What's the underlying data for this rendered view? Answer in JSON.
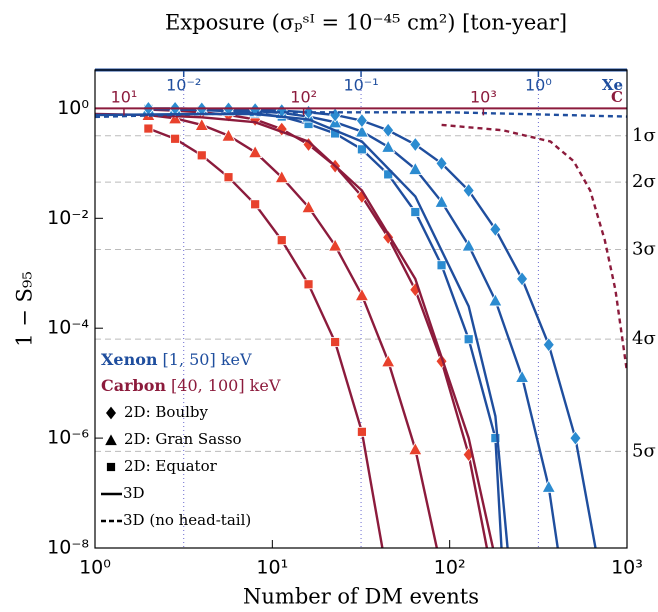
{
  "chart_data": {
    "type": "line",
    "title": "Exposure (σₚˢᴵ = 10⁻⁴⁵ cm²) [ton-year]",
    "x_label": "Number of DM events",
    "y_label": "1 − S₉₅",
    "log_x": true,
    "log_y": true,
    "xlim": [
      1,
      1000
    ],
    "xticks": [
      {
        "value": 1,
        "label": "10⁰"
      },
      {
        "value": 10,
        "label": "10¹"
      },
      {
        "value": 100,
        "label": "10²"
      },
      {
        "value": 1000,
        "label": "10³"
      }
    ],
    "ylim": [
      1e-08,
      5
    ],
    "yticks": [
      {
        "value": 1,
        "label": "10⁰"
      },
      {
        "value": 0.01,
        "label": "10⁻²"
      },
      {
        "value": 0.0001,
        "label": "10⁻⁴"
      },
      {
        "value": 1e-06,
        "label": "10⁻⁶"
      },
      {
        "value": 1e-08,
        "label": "10⁻⁸"
      }
    ],
    "y2lim": [
      1e-08,
      5
    ],
    "y2ticks": [
      {
        "value": 0.3173,
        "label": "1σ"
      },
      {
        "value": 0.0455,
        "label": "2σ"
      },
      {
        "value": 0.0027,
        "label": "3σ"
      },
      {
        "value": 6.33e-05,
        "label": "4σ"
      },
      {
        "value": 5.73e-07,
        "label": "5σ"
      }
    ],
    "y2_grid": true,
    "top_axes": [
      {
        "name": "Xe",
        "color": "#1f4e9e",
        "lim": [
          0.00316,
          3.16
        ],
        "ticks": [
          {
            "value": 0.01,
            "label": "10⁻²"
          },
          {
            "value": 0.1,
            "label": "10⁻¹"
          },
          {
            "value": 1,
            "label": "10⁰"
          }
        ],
        "grid": true
      },
      {
        "name": "C",
        "color": "#8c1b3c",
        "lim": [
          6.9,
          6300
        ],
        "ticks": [
          {
            "value": 10,
            "label": "10¹"
          },
          {
            "value": 100,
            "label": "10²"
          },
          {
            "value": 1000,
            "label": "10³"
          }
        ],
        "grid": false
      }
    ],
    "legend": {
      "targets": [
        {
          "name": "Xenon",
          "range": "[1, 50] keV",
          "color": "#1f4e9e"
        },
        {
          "name": "Carbon",
          "range": "[40, 100] keV",
          "color": "#8c1b3c"
        }
      ],
      "entries": [
        {
          "label": "2D: Boulby",
          "marker": "diamond"
        },
        {
          "label": "2D: Gran Sasso",
          "marker": "triangle"
        },
        {
          "label": "2D: Equator",
          "marker": "square"
        },
        {
          "label": "3D",
          "dash": false
        },
        {
          "label": "3D (no head-tail)",
          "dash": true
        }
      ]
    },
    "series": [
      {
        "color": "#8c1b3c",
        "marker": "square",
        "marker_color": "#e8412c",
        "dash": false,
        "x": [
          2,
          2.83,
          4,
          5.66,
          8,
          11.3,
          16,
          22.6,
          32,
          45
        ],
        "values": [
          0.43,
          0.28,
          0.14,
          0.056,
          0.018,
          0.004,
          0.00063,
          5.6e-05,
          1.3e-06,
          2.5e-09
        ]
      },
      {
        "color": "#8c1b3c",
        "marker": "triangle",
        "marker_color": "#e8412c",
        "dash": false,
        "x": [
          2,
          2.83,
          4,
          5.66,
          8,
          11.3,
          16,
          22.6,
          32,
          45,
          64,
          90
        ],
        "values": [
          0.76,
          0.66,
          0.5,
          0.32,
          0.16,
          0.056,
          0.016,
          0.0032,
          0.0004,
          2.5e-05,
          6.3e-07,
          4e-09
        ]
      },
      {
        "color": "#8c1b3c",
        "marker": "diamond",
        "marker_color": "#e8412c",
        "dash": false,
        "x": [
          2,
          2.83,
          4,
          5.66,
          8,
          11.3,
          16,
          22.6,
          32,
          45,
          64,
          90,
          128,
          181
        ],
        "values": [
          0.95,
          0.91,
          0.85,
          0.76,
          0.63,
          0.42,
          0.22,
          0.089,
          0.025,
          0.0045,
          0.0005,
          2.5e-05,
          5e-07,
          1.6e-09
        ]
      },
      {
        "color": "#8c1b3c",
        "marker": null,
        "dash": false,
        "x": [
          1,
          2,
          4,
          8,
          16,
          32,
          64,
          128,
          181
        ],
        "values": [
          0.79,
          0.76,
          0.69,
          0.56,
          0.25,
          0.032,
          0.00079,
          1e-06,
          6.3e-09
        ]
      },
      {
        "color": "#1f4e9e",
        "marker": "square",
        "marker_color": "#2b8bd0",
        "dash": false,
        "x": [
          2,
          2.83,
          4,
          5.66,
          8,
          11.3,
          16,
          22.6,
          32,
          45,
          64,
          90,
          128,
          181,
          200
        ],
        "values": [
          0.98,
          0.95,
          0.93,
          0.89,
          0.81,
          0.71,
          0.52,
          0.35,
          0.18,
          0.063,
          0.013,
          0.0014,
          6.3e-05,
          1e-06,
          3.2e-09
        ]
      },
      {
        "color": "#1f4e9e",
        "marker": "triangle",
        "marker_color": "#2b8bd0",
        "dash": false,
        "x": [
          2,
          2.83,
          4,
          5.66,
          8,
          11.3,
          16,
          22.6,
          32,
          45,
          64,
          90,
          128,
          181,
          256,
          362,
          420
        ],
        "values": [
          0.98,
          0.98,
          0.95,
          0.93,
          0.89,
          0.83,
          0.71,
          0.56,
          0.38,
          0.2,
          0.079,
          0.02,
          0.0032,
          0.00032,
          1.3e-05,
          1.3e-07,
          5e-09
        ]
      },
      {
        "color": "#1f4e9e",
        "marker": "diamond",
        "marker_color": "#2b8bd0",
        "dash": false,
        "x": [
          2,
          2.83,
          4,
          5.66,
          8,
          11.3,
          16,
          22.6,
          32,
          45,
          64,
          90,
          128,
          181,
          256,
          362,
          512,
          700
        ],
        "values": [
          1.0,
          1.0,
          0.98,
          0.98,
          0.95,
          0.91,
          0.85,
          0.76,
          0.6,
          0.4,
          0.22,
          0.1,
          0.032,
          0.0063,
          0.00079,
          5e-05,
          1e-06,
          4e-09
        ]
      },
      {
        "color": "#1f4e9e",
        "marker": null,
        "dash": false,
        "x": [
          1,
          4,
          8,
          16,
          32,
          64,
          128,
          181,
          215
        ],
        "values": [
          0.76,
          0.79,
          0.79,
          0.63,
          0.25,
          0.025,
          0.00025,
          2.5e-06,
          6.3e-09
        ]
      },
      {
        "color": "#1f4e9e",
        "marker": null,
        "dash": true,
        "x": [
          1,
          10,
          100,
          300,
          1000
        ],
        "values": [
          0.7,
          0.85,
          0.85,
          0.78,
          0.71
        ]
      },
      {
        "color": "#8c1b3c",
        "marker": null,
        "dash": true,
        "x": [
          90,
          200,
          370,
          500,
          620,
          750,
          860,
          1000
        ],
        "values": [
          0.5,
          0.4,
          0.25,
          0.11,
          0.032,
          0.004,
          0.0005,
          1.6e-05
        ]
      }
    ]
  }
}
